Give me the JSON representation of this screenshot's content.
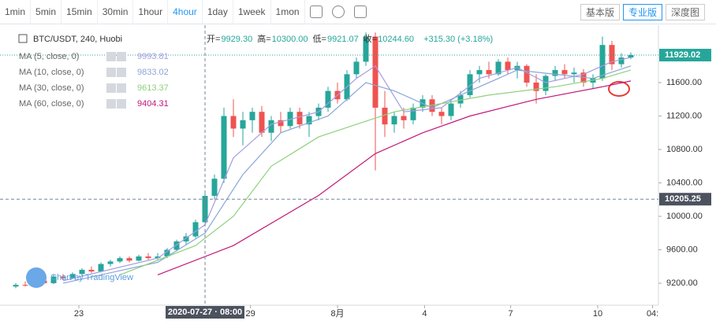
{
  "toolbar": {
    "intervals": [
      "1min",
      "5min",
      "15min",
      "30min",
      "1hour",
      "4hour",
      "1day",
      "1week",
      "1mon"
    ],
    "active_interval": 5,
    "versions": [
      "基本版",
      "专业版",
      "深度图"
    ],
    "active_version": 1
  },
  "chart_data": {
    "type": "candlestick",
    "title": "BTC/USDT, 240, Huobi",
    "ohlc": [
      {
        "label": "开=",
        "value": "9929.30"
      },
      {
        "label": "高=",
        "value": "10300.00"
      },
      {
        "label": "低=",
        "value": "9921.07"
      },
      {
        "label": "收=",
        "value": "10244.60"
      }
    ],
    "change": "+315.30 (+3.18%)",
    "up_color": "#26a69a",
    "down_color": "#ef5350",
    "open": [
      9160,
      9180,
      9170,
      9230,
      9200,
      9280,
      9260,
      9310,
      9360,
      9340,
      9430,
      9460,
      9500,
      9470,
      9520,
      9500,
      9520,
      9600,
      9700,
      9760,
      9929.3,
      10245,
      10450,
      11200,
      11050,
      11150,
      11250,
      11000,
      11150,
      11080,
      11250,
      11100,
      11200,
      11300,
      11500,
      11400,
      11700,
      11850,
      12150,
      11300,
      11100,
      11200,
      11150,
      11300,
      11400,
      11250,
      11200,
      11350,
      11450,
      11700,
      11750,
      11700,
      11850,
      11750,
      11800,
      11600,
      11500,
      11680,
      11750,
      11700,
      11720,
      11600,
      11650,
      12050,
      11820,
      11900
    ],
    "high": [
      9200,
      9220,
      9240,
      9260,
      9300,
      9310,
      9330,
      9380,
      9400,
      9450,
      9480,
      9520,
      9520,
      9540,
      9560,
      9560,
      9620,
      9720,
      9800,
      9960,
      10300.0,
      10500,
      11300,
      11400,
      11250,
      11300,
      11320,
      11200,
      11250,
      11300,
      11300,
      11250,
      11350,
      11550,
      11600,
      11750,
      11900,
      12200,
      12200,
      11500,
      11250,
      11300,
      11350,
      11450,
      11450,
      11300,
      11380,
      11500,
      11750,
      11800,
      11850,
      11880,
      11900,
      11850,
      11820,
      11700,
      11700,
      11800,
      11820,
      11780,
      11760,
      11700,
      12150,
      12100,
      11950,
      11960
    ],
    "low": [
      9140,
      9160,
      9150,
      9190,
      9190,
      9240,
      9250,
      9290,
      9320,
      9330,
      9400,
      9440,
      9450,
      9460,
      9480,
      9480,
      9500,
      9580,
      9660,
      9740,
      9921.07,
      10200,
      10400,
      10950,
      10850,
      11000,
      10950,
      10900,
      11000,
      11050,
      11050,
      10950,
      11150,
      11250,
      11350,
      11380,
      11650,
      11800,
      10550,
      10950,
      11000,
      11050,
      11100,
      11250,
      11200,
      11100,
      11150,
      11300,
      11420,
      11600,
      11650,
      11680,
      11700,
      11650,
      11550,
      11350,
      11450,
      11620,
      11650,
      11600,
      11550,
      11520,
      11620,
      11750,
      11780,
      11880
    ],
    "close": [
      9180,
      9170,
      9230,
      9200,
      9280,
      9260,
      9310,
      9360,
      9340,
      9430,
      9460,
      9500,
      9470,
      9520,
      9500,
      9520,
      9600,
      9700,
      9760,
      9930,
      10244.6,
      10450,
      11200,
      11050,
      11150,
      11250,
      11000,
      11150,
      11080,
      11250,
      11100,
      11200,
      11300,
      11500,
      11400,
      11700,
      11850,
      12150,
      11300,
      11100,
      11200,
      11150,
      11300,
      11400,
      11250,
      11200,
      11350,
      11450,
      11700,
      11750,
      11700,
      11850,
      11750,
      11800,
      11600,
      11500,
      11680,
      11750,
      11700,
      11720,
      11600,
      11650,
      12050,
      11820,
      11900,
      11929.02
    ],
    "series": [
      {
        "name": "MA (5, close, 0)",
        "legend_value": "9993.81",
        "color": "#a79be0",
        "x": [
          5,
          15,
          20,
          23,
          27,
          32,
          36,
          38,
          41,
          45,
          49,
          53,
          56,
          60,
          63,
          65
        ],
        "values": [
          9230,
          9500,
          9900,
          10700,
          11100,
          11250,
          11650,
          11800,
          11250,
          11300,
          11650,
          11780,
          11600,
          11700,
          11850,
          11900
        ]
      },
      {
        "name": "MA (10, close, 0)",
        "legend_value": "9833.02",
        "color": "#8aa6d6",
        "x": [
          5,
          15,
          20,
          24,
          28,
          33,
          37,
          40,
          44,
          48,
          53,
          57,
          61,
          65
        ],
        "values": [
          9200,
          9450,
          9800,
          10500,
          11000,
          11200,
          11600,
          11500,
          11300,
          11500,
          11750,
          11700,
          11650,
          11800
        ]
      },
      {
        "name": "MA (30, close, 0)",
        "legend_value": "9613.37",
        "color": "#8fd07c",
        "x": [
          11,
          19,
          23,
          27,
          32,
          36,
          40,
          45,
          50,
          57,
          62,
          65
        ],
        "values": [
          9300,
          9650,
          10000,
          10600,
          10950,
          11100,
          11250,
          11350,
          11450,
          11550,
          11650,
          11750
        ]
      },
      {
        "name": "MA (60, close, 0)",
        "legend_value": "9404.31",
        "color": "#c2187a",
        "x": [
          15,
          23,
          32,
          38,
          43,
          48,
          55,
          62,
          65
        ],
        "values": [
          9300,
          9650,
          10250,
          10750,
          11000,
          11200,
          11400,
          11550,
          11620
        ]
      }
    ],
    "ylim": [
      8937,
      12287
    ],
    "yticks": [
      {
        "value": 9200,
        "label": "9200.00"
      },
      {
        "value": 9600,
        "label": "9600.00"
      },
      {
        "value": 10000,
        "label": "10000.00"
      },
      {
        "value": 10400,
        "label": "10400.00"
      },
      {
        "value": 10800,
        "label": "10800.00"
      },
      {
        "value": 11200,
        "label": "11200.00"
      },
      {
        "value": 11600,
        "label": "11600.00"
      }
    ],
    "xticks": [
      {
        "value": 6.67,
        "label": "23"
      },
      {
        "value": 24.8,
        "label": "29"
      },
      {
        "value": 34,
        "label": "8月"
      },
      {
        "value": 43.2,
        "label": "4"
      },
      {
        "value": 52.3,
        "label": "7"
      },
      {
        "value": 61.5,
        "label": "10"
      },
      {
        "value": 67.3,
        "label": "04:"
      }
    ],
    "last_price": 11929.02,
    "crosshair": {
      "x": 20,
      "x_label": "2020-07-27 · 08:00",
      "y": 10205.25
    },
    "watermark": "Chart by TradingView"
  }
}
